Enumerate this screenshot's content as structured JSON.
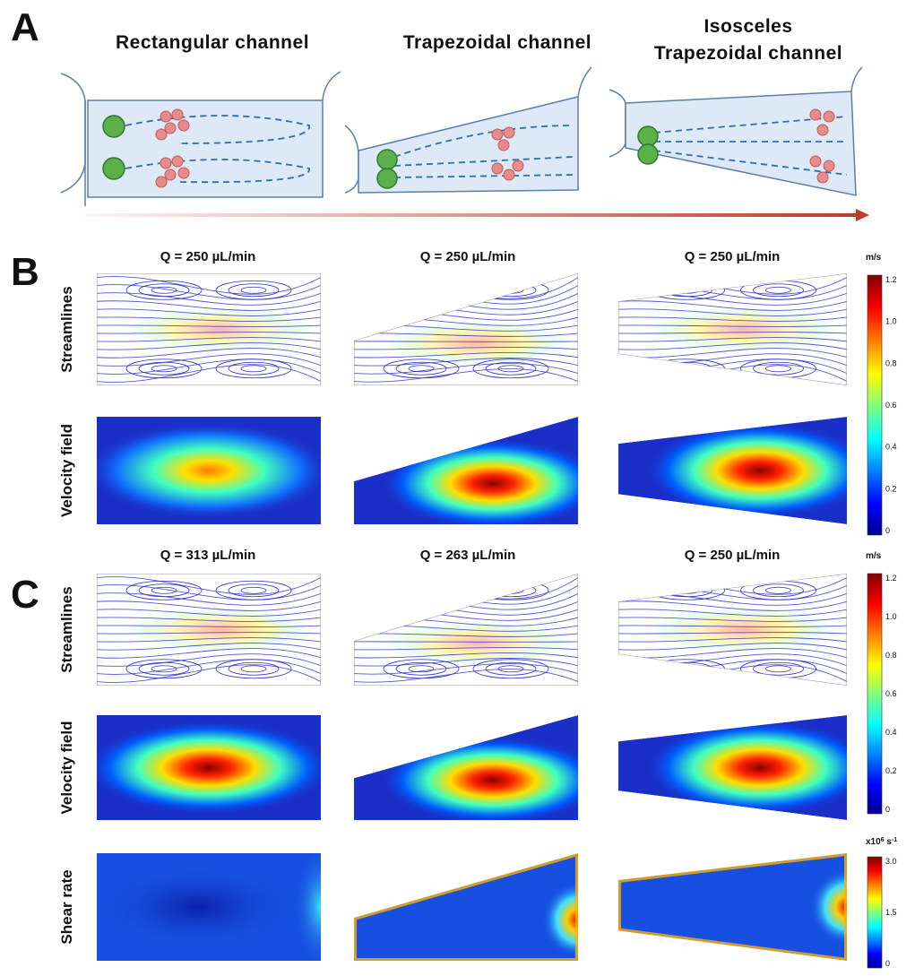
{
  "panel_a": {
    "label": "A",
    "columns": [
      [
        "Rectangular channel"
      ],
      [
        "Trapezoidal channel"
      ],
      [
        "Isosceles",
        "Trapezoidal channel"
      ]
    ]
  },
  "panel_b": {
    "label": "B",
    "flow_rates": [
      "Q = 250 µL/min",
      "Q = 250 µL/min",
      "Q = 250 µL/min"
    ],
    "rows": [
      "Streamlines",
      "Velocity field"
    ],
    "colorbar": {
      "unit": [
        "m/s"
      ],
      "ticks": [
        "1.2",
        "1.0",
        "0.8",
        "0.6",
        "0.4",
        "0.2",
        "0"
      ]
    }
  },
  "panel_c": {
    "label": "C",
    "flow_rates": [
      "Q = 313 µL/min",
      "Q = 263 µL/min",
      "Q = 250 µL/min"
    ],
    "rows": [
      "Streamlines",
      "Velocity field",
      "Shear rate"
    ],
    "colorbars": [
      {
        "unit": [
          "m/s"
        ],
        "ticks": [
          "1.2",
          "1.0",
          "0.8",
          "0.6",
          "0.4",
          "0.2",
          "0"
        ]
      },
      {
        "unit": [
          "x10",
          "6",
          " s",
          "-1"
        ],
        "ticks": [
          "3.0",
          "1.5",
          "0"
        ]
      }
    ]
  }
}
